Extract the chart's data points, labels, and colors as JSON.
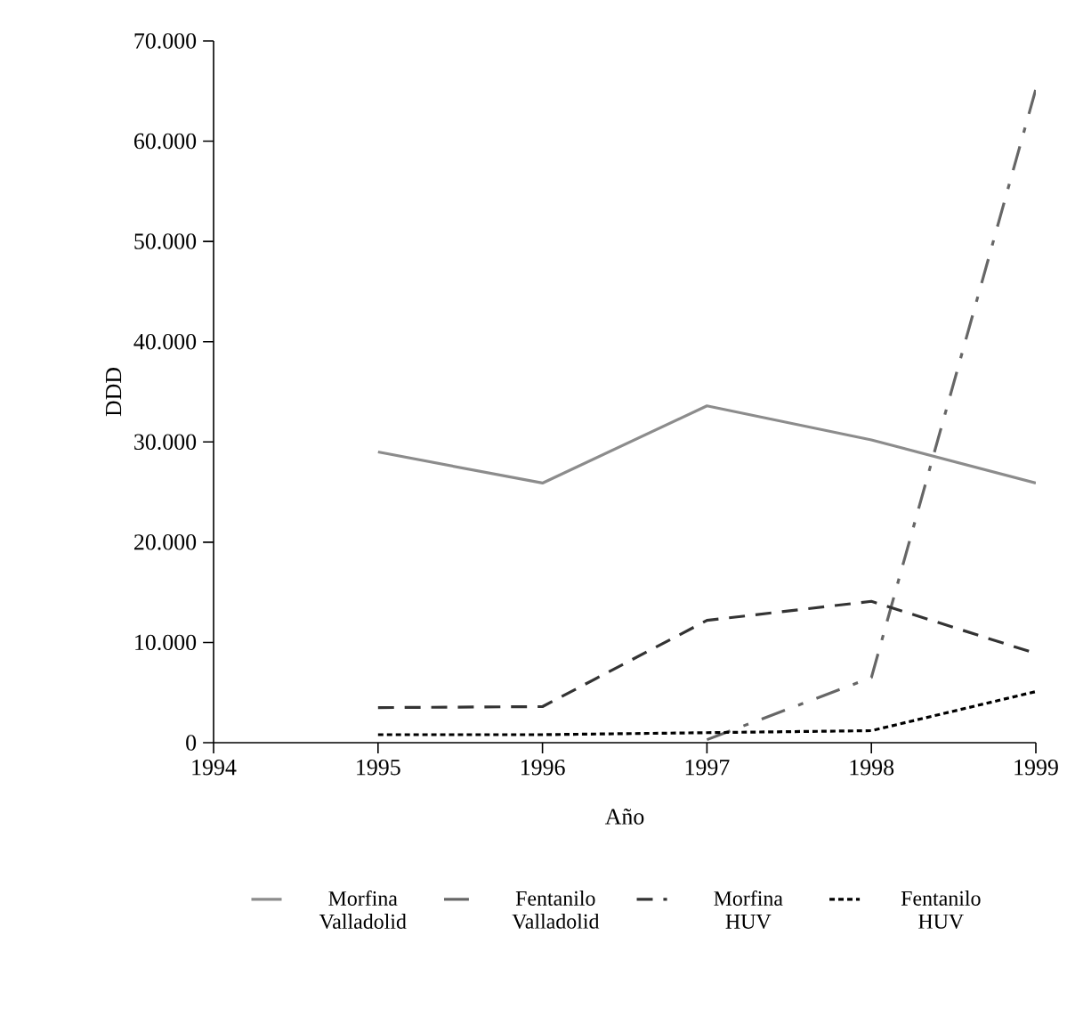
{
  "chart_data": {
    "type": "line",
    "xlabel": "Año",
    "ylabel": "DDD",
    "x": [
      1995,
      1996,
      1997,
      1998,
      1999
    ],
    "xlim": [
      1994,
      1999
    ],
    "xticks": [
      1994,
      1995,
      1996,
      1997,
      1998,
      1999
    ],
    "ylim": [
      0,
      70000
    ],
    "yticks": [
      0,
      {
        "value": 10000,
        "label": "10.000"
      },
      {
        "value": 20000,
        "label": "20.000"
      },
      {
        "value": 30000,
        "label": "30.000"
      },
      {
        "value": 40000,
        "label": "40.000"
      },
      {
        "value": 50000,
        "label": "50.000"
      },
      {
        "value": 60000,
        "label": "60.000"
      },
      {
        "value": 70000,
        "label": "70.000"
      }
    ],
    "grid": false,
    "legend": "bottom",
    "marker": "none",
    "series": [
      {
        "name": "Morfina Valladolid",
        "color": "#8c8c8c",
        "line_style": "solid",
        "values": [
          29000,
          25900,
          33600,
          30200,
          25900
        ]
      },
      {
        "name": "Fentanilo Valladolid",
        "color": "#666666",
        "line_style": "dashdot",
        "values": [
          null,
          null,
          300,
          6500,
          65200
        ]
      },
      {
        "name": "Morfina HUV",
        "color": "#333333",
        "line_style": "dashed",
        "values": [
          3500,
          3600,
          12200,
          14100,
          8900
        ]
      },
      {
        "name": "Fentanilo HUV",
        "color": "#000000",
        "line_style": "dotted",
        "values": [
          800,
          800,
          1000,
          1200,
          5100
        ]
      }
    ]
  }
}
